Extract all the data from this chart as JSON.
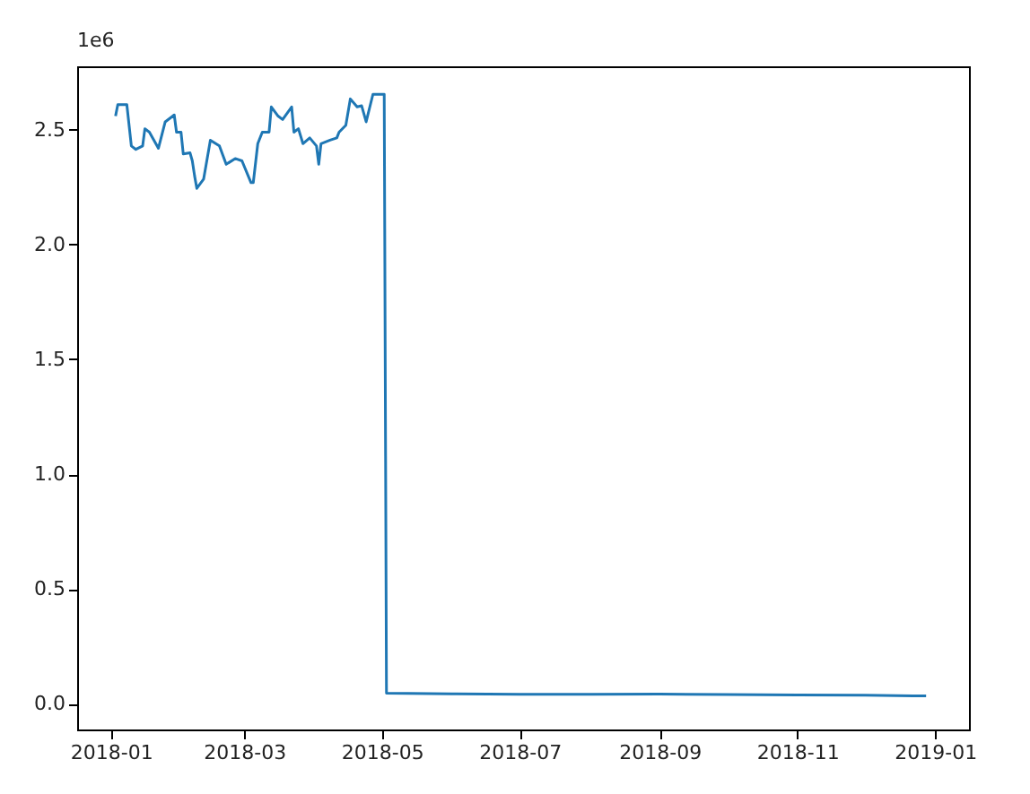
{
  "chart_data": {
    "type": "line",
    "annotations": [
      "1e6"
    ],
    "x": [
      "2018-01-03",
      "2018-01-04",
      "2018-01-08",
      "2018-01-10",
      "2018-01-12",
      "2018-01-15",
      "2018-01-16",
      "2018-01-18",
      "2018-01-22",
      "2018-01-25",
      "2018-01-29",
      "2018-01-30",
      "2018-02-01",
      "2018-02-02",
      "2018-02-05",
      "2018-02-06",
      "2018-02-07",
      "2018-02-08",
      "2018-02-11",
      "2018-02-14",
      "2018-02-18",
      "2018-02-21",
      "2018-02-25",
      "2018-02-28",
      "2018-03-04",
      "2018-03-05",
      "2018-03-07",
      "2018-03-09",
      "2018-03-12",
      "2018-03-13",
      "2018-03-16",
      "2018-03-18",
      "2018-03-22",
      "2018-03-23",
      "2018-03-25",
      "2018-03-27",
      "2018-03-30",
      "2018-04-02",
      "2018-04-03",
      "2018-04-04",
      "2018-04-08",
      "2018-04-11",
      "2018-04-12",
      "2018-04-15",
      "2018-04-17",
      "2018-04-20",
      "2018-04-22",
      "2018-04-24",
      "2018-04-27",
      "2018-05-02",
      "2018-05-03",
      "2018-06-01",
      "2018-07-01",
      "2018-08-01",
      "2018-09-01",
      "2018-10-01",
      "2018-11-01",
      "2018-12-01",
      "2018-12-28"
    ],
    "series": [
      {
        "color": "#1f77b4",
        "values": [
          2.56,
          2.61,
          2.61,
          2.43,
          2.415,
          2.43,
          2.505,
          2.49,
          2.42,
          2.535,
          2.565,
          2.49,
          2.49,
          2.395,
          2.4,
          2.365,
          2.3,
          2.245,
          2.285,
          2.455,
          2.43,
          2.35,
          2.375,
          2.365,
          2.27,
          2.27,
          2.44,
          2.49,
          2.49,
          2.6,
          2.56,
          2.545,
          2.6,
          2.49,
          2.505,
          2.44,
          2.465,
          2.43,
          2.35,
          2.44,
          2.455,
          2.465,
          2.49,
          2.52,
          2.635,
          2.6,
          2.605,
          2.535,
          2.655,
          2.655,
          0.045,
          0.042,
          0.04,
          0.04,
          0.041,
          0.039,
          0.037,
          0.036,
          0.033
        ]
      }
    ],
    "xlim": [
      "2017-12-17",
      "2019-01-16"
    ],
    "xticks": [
      "2018-01",
      "2018-03",
      "2018-05",
      "2018-07",
      "2018-09",
      "2018-11",
      "2019-01"
    ],
    "ylim": [
      -0.113,
      2.777
    ],
    "yticks": [
      {
        "value": 0,
        "label": "0.0"
      },
      0.5,
      {
        "value": 1,
        "label": "1.0"
      },
      1.5,
      {
        "value": 2,
        "label": "2.0"
      },
      2.5
    ],
    "grid": false
  }
}
